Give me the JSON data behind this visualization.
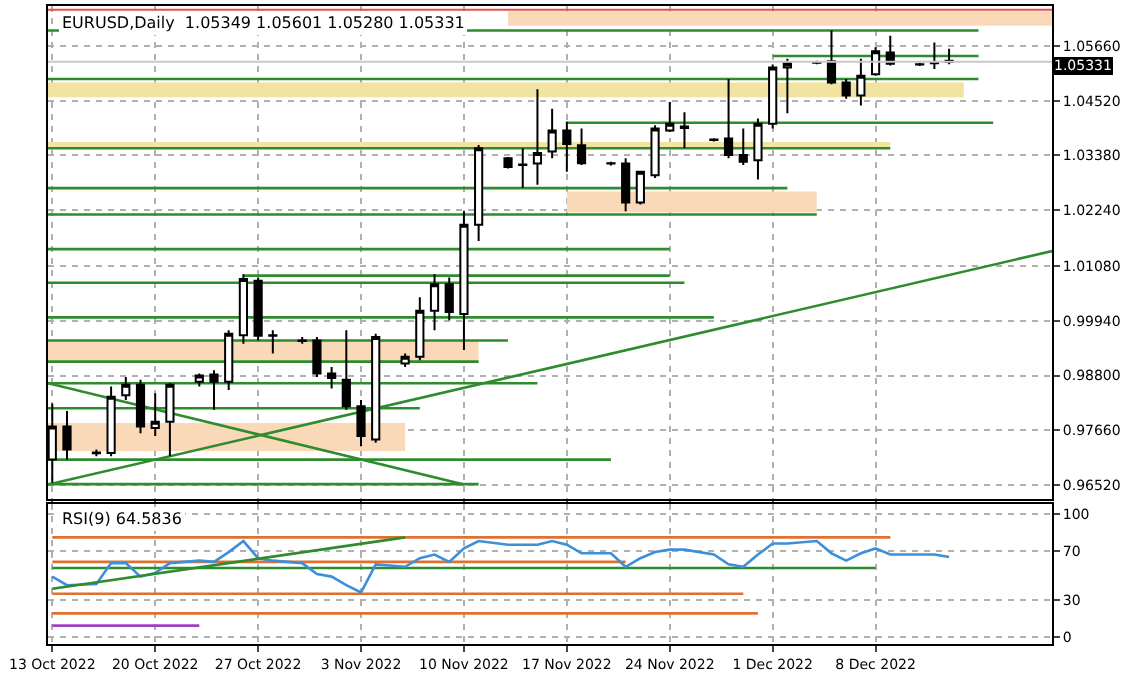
{
  "chart_data": [
    {
      "type": "candlestick",
      "title": "EURUSD,Daily  1.05349 1.05601 1.05280 1.05331",
      "x": [
        "2022-10-13",
        "2022-10-14",
        "2022-10-16",
        "2022-10-17",
        "2022-10-18",
        "2022-10-19",
        "2022-10-20",
        "2022-10-21",
        "2022-10-23",
        "2022-10-24",
        "2022-10-25",
        "2022-10-26",
        "2022-10-27",
        "2022-10-28",
        "2022-10-30",
        "2022-10-31",
        "2022-11-01",
        "2022-11-02",
        "2022-11-03",
        "2022-11-04",
        "2022-11-06",
        "2022-11-07",
        "2022-11-08",
        "2022-11-09",
        "2022-11-10",
        "2022-11-11",
        "2022-11-13",
        "2022-11-14",
        "2022-11-15",
        "2022-11-16",
        "2022-11-17",
        "2022-11-18",
        "2022-11-20",
        "2022-11-21",
        "2022-11-22",
        "2022-11-23",
        "2022-11-24",
        "2022-11-25",
        "2022-11-27",
        "2022-11-28",
        "2022-11-29",
        "2022-11-30",
        "2022-12-01",
        "2022-12-02",
        "2022-12-04",
        "2022-12-05",
        "2022-12-06",
        "2022-12-07",
        "2022-12-08",
        "2022-12-09",
        "2022-12-11",
        "2022-12-12",
        "2022-12-13"
      ],
      "ohlc": [
        [
          0.9705,
          0.9822,
          0.9657,
          0.9774
        ],
        [
          0.9774,
          0.9806,
          0.9705,
          0.9726
        ],
        [
          0.972,
          0.9726,
          0.9712,
          0.9718
        ],
        [
          0.9719,
          0.9857,
          0.9712,
          0.9836
        ],
        [
          0.9839,
          0.9877,
          0.9829,
          0.9861
        ],
        [
          0.9861,
          0.9871,
          0.976,
          0.9774
        ],
        [
          0.9771,
          0.9843,
          0.9754,
          0.9784
        ],
        [
          0.9784,
          0.9864,
          0.9712,
          0.9861
        ],
        [
          0.9867,
          0.9884,
          0.9857,
          0.988
        ],
        [
          0.9882,
          0.9891,
          0.9809,
          0.9867
        ],
        [
          0.9867,
          0.9974,
          0.985,
          0.9967
        ],
        [
          0.9964,
          1.0091,
          0.9946,
          1.0081
        ],
        [
          1.0077,
          1.0084,
          0.9953,
          0.9963
        ],
        [
          0.9964,
          0.9974,
          0.9926,
          0.9963
        ],
        [
          0.9953,
          0.996,
          0.9946,
          0.9952
        ],
        [
          0.9953,
          0.996,
          0.9877,
          0.9884
        ],
        [
          0.9884,
          0.9898,
          0.9853,
          0.9875
        ],
        [
          0.9871,
          0.9974,
          0.9809,
          0.9816
        ],
        [
          0.9816,
          0.9829,
          0.9733,
          0.9754
        ],
        [
          0.9747,
          0.9967,
          0.974,
          0.996
        ],
        [
          0.9905,
          0.9926,
          0.9898,
          0.9919
        ],
        [
          0.9919,
          1.0043,
          0.9912,
          1.0015
        ],
        [
          1.0015,
          1.0091,
          0.9974,
          1.007
        ],
        [
          1.007,
          1.0084,
          0.9995,
          1.0012
        ],
        [
          1.0008,
          1.0222,
          0.9933,
          1.0194
        ],
        [
          1.0194,
          1.036,
          1.016,
          1.0353
        ],
        [
          1.0332,
          1.0335,
          1.0311,
          1.0314
        ],
        [
          1.0319,
          1.0353,
          1.027,
          1.0318
        ],
        [
          1.0321,
          1.0476,
          1.0277,
          1.0343
        ],
        [
          1.0346,
          1.0435,
          1.0332,
          1.039
        ],
        [
          1.039,
          1.0408,
          1.0304,
          1.0362
        ],
        [
          1.0359,
          1.0394,
          1.0318,
          1.0322
        ],
        [
          1.0322,
          1.0325,
          1.0317,
          1.0321
        ],
        [
          1.0321,
          1.0332,
          1.0222,
          1.024
        ],
        [
          1.024,
          1.0305,
          1.0236,
          1.0304
        ],
        [
          1.0297,
          1.0401,
          1.0291,
          1.0394
        ],
        [
          1.039,
          1.0449,
          1.0387,
          1.0404
        ],
        [
          1.0395,
          1.0428,
          1.0353,
          1.0398
        ],
        [
          1.0371,
          1.0374,
          1.0367,
          1.037
        ],
        [
          1.0373,
          1.0497,
          1.0332,
          1.0339
        ],
        [
          1.0339,
          1.0394,
          1.0318,
          1.0325
        ],
        [
          1.0328,
          1.0415,
          1.0288,
          1.0404
        ],
        [
          1.0404,
          1.0527,
          1.0394,
          1.0521
        ],
        [
          1.0521,
          1.0539,
          1.0426,
          1.053
        ],
        [
          1.0532,
          1.0535,
          1.0528,
          1.0531
        ],
        [
          1.0534,
          1.0598,
          1.0486,
          1.049
        ],
        [
          1.049,
          1.0497,
          1.0456,
          1.0463
        ],
        [
          1.0463,
          1.0539,
          1.0442,
          1.0504
        ],
        [
          1.0507,
          1.0563,
          1.0504,
          1.0555
        ],
        [
          1.0552,
          1.0587,
          1.0525,
          1.0529
        ],
        [
          1.0528,
          1.0531,
          1.0524,
          1.0527
        ],
        [
          1.0531,
          1.0573,
          1.0518,
          1.053
        ],
        [
          1.05349,
          1.05601,
          1.0528,
          1.05331
        ]
      ],
      "xlim": [
        "2022-10-12T17:00",
        "2022-12-20"
      ],
      "xticks": [
        {
          "value": "2022-10-13",
          "label": null
        },
        {
          "value": "2022-10-20",
          "label": null
        },
        {
          "value": "2022-10-27",
          "label": null
        },
        {
          "value": "2022-11-03",
          "label": null
        },
        {
          "value": "2022-11-10",
          "label": null
        },
        {
          "value": "2022-11-17",
          "label": null
        },
        {
          "value": "2022-11-24",
          "label": null
        },
        {
          "value": "2022-12-01",
          "label": null
        },
        {
          "value": "2022-12-08",
          "label": null
        }
      ],
      "tick_labels": "y",
      "ylim": [
        0.9624,
        1.0649
      ],
      "yticks": [
        {
          "value": 0.9652,
          "label": "0.96520"
        },
        {
          "value": 0.9766,
          "label": "0.97660"
        },
        {
          "value": 0.988,
          "label": "0.98800"
        },
        {
          "value": 0.9994,
          "label": "0.99940"
        },
        {
          "value": 1.0108,
          "label": "1.01080"
        },
        {
          "value": 1.0224,
          "label": "1.02240"
        },
        {
          "value": 1.0338,
          "label": "1.03380"
        },
        {
          "value": 1.0452,
          "label": "1.04520"
        },
        {
          "value": 1.0566,
          "label": "1.05660"
        }
      ],
      "grid": true,
      "series": [
        {
          "type": "line",
          "color": "#f0e4a0",
          "x": [
            "2022-10-12T17:00",
            "2022-12-14"
          ],
          "values": [
            null,
            null
          ],
          "lower": [
            1.0459,
            1.0459
          ],
          "upper": [
            1.049,
            1.049
          ]
        },
        {
          "type": "line",
          "color": "#f0e4a0",
          "x": [
            "2022-10-12T17:00",
            "2022-12-09"
          ],
          "values": [
            null,
            null
          ],
          "lower": [
            1.0353,
            1.0353
          ],
          "upper": [
            1.0366,
            1.0366
          ]
        },
        {
          "type": "line",
          "color": "#fad9b8",
          "x": [
            "2022-11-13",
            "2022-12-20"
          ],
          "values": [
            null,
            null
          ],
          "lower": [
            1.0608,
            1.0608
          ],
          "upper": [
            1.0638,
            1.0638
          ]
        },
        {
          "type": "line",
          "color": "#fad9b8",
          "x": [
            "2022-11-17",
            "2022-12-04"
          ],
          "values": [
            null,
            null
          ],
          "lower": [
            1.0219,
            1.0219
          ],
          "upper": [
            1.0263,
            1.0263
          ]
        },
        {
          "type": "line",
          "color": "#fad9b8",
          "x": [
            "2022-10-12T17:00",
            "2022-11-11"
          ],
          "values": [
            null,
            null
          ],
          "lower": [
            0.9909,
            0.9909
          ],
          "upper": [
            0.9953,
            0.9953
          ]
        },
        {
          "type": "line",
          "color": "#fad9b8",
          "x": [
            "2022-10-12T17:00",
            "2022-11-06"
          ],
          "values": [
            null,
            null
          ],
          "lower": [
            0.9723,
            0.9723
          ],
          "upper": [
            0.9781,
            0.9781
          ]
        },
        {
          "type": "line",
          "color": "#2e8b2e",
          "x": [
            "2022-10-12T17:00",
            "2022-12-15"
          ],
          "values": [
            1.0598,
            1.0598
          ]
        },
        {
          "type": "line",
          "color": "#2e8b2e",
          "x": [
            "2022-10-12T17:00",
            "2022-12-15"
          ],
          "values": [
            1.0497,
            1.0497
          ]
        },
        {
          "type": "line",
          "color": "#2e8b2e",
          "x": [
            "2022-12-01",
            "2022-12-15"
          ],
          "values": [
            1.0545,
            1.0545
          ]
        },
        {
          "type": "line",
          "color": "#2e8b2e",
          "x": [
            "2022-11-17",
            "2022-12-16"
          ],
          "values": [
            1.0406,
            1.0406
          ]
        },
        {
          "type": "line",
          "color": "#2e8b2e",
          "x": [
            "2022-10-12T17:00",
            "2022-12-09"
          ],
          "values": [
            1.0353,
            1.0353
          ]
        },
        {
          "type": "line",
          "color": "#2e8b2e",
          "x": [
            "2022-10-12T17:00",
            "2022-12-02"
          ],
          "values": [
            1.027,
            1.027
          ]
        },
        {
          "type": "line",
          "color": "#2e8b2e",
          "x": [
            "2022-10-12T17:00",
            "2022-12-04"
          ],
          "values": [
            1.0215,
            1.0215
          ]
        },
        {
          "type": "line",
          "color": "#2e8b2e",
          "x": [
            "2022-10-12T17:00",
            "2022-11-24"
          ],
          "values": [
            1.0143,
            1.0143
          ]
        },
        {
          "type": "line",
          "color": "#2e8b2e",
          "x": [
            "2022-10-26",
            "2022-11-24"
          ],
          "values": [
            1.0088,
            1.0088
          ]
        },
        {
          "type": "line",
          "color": "#2e8b2e",
          "x": [
            "2022-10-12T17:00",
            "2022-11-25"
          ],
          "values": [
            1.0073,
            1.0073
          ]
        },
        {
          "type": "line",
          "color": "#2e8b2e",
          "x": [
            "2022-10-12T17:00",
            "2022-11-27"
          ],
          "values": [
            1.0001,
            1.0001
          ]
        },
        {
          "type": "line",
          "color": "#2e8b2e",
          "x": [
            "2022-10-12T17:00",
            "2022-11-13"
          ],
          "values": [
            0.9953,
            0.9953
          ]
        },
        {
          "type": "line",
          "color": "#2e8b2e",
          "x": [
            "2022-10-12T17:00",
            "2022-11-11"
          ],
          "values": [
            0.9909,
            0.9909
          ]
        },
        {
          "type": "line",
          "color": "#2e8b2e",
          "x": [
            "2022-10-12T17:00",
            "2022-11-15"
          ],
          "values": [
            0.9864,
            0.9864
          ]
        },
        {
          "type": "line",
          "color": "#2e8b2e",
          "x": [
            "2022-10-12T17:00",
            "2022-11-07"
          ],
          "values": [
            0.9812,
            0.9812
          ]
        },
        {
          "type": "line",
          "color": "#2e8b2e",
          "x": [
            "2022-10-12T17:00",
            "2022-11-20"
          ],
          "values": [
            0.9705,
            0.9705
          ]
        },
        {
          "type": "line",
          "color": "#2e8b2e",
          "x": [
            "2022-10-12T17:00",
            "2022-11-11"
          ],
          "values": [
            0.9654,
            0.9654
          ]
        },
        {
          "type": "line",
          "color": "#2e8b2e",
          "x": [
            "2022-10-12T17:00",
            "2022-11-10"
          ],
          "values": [
            0.9864,
            0.9653
          ]
        },
        {
          "type": "line",
          "color": "#2e8b2e",
          "x": [
            "2022-10-12T17:00",
            "2022-12-20"
          ],
          "values": [
            0.9653,
            1.0139
          ]
        }
      ],
      "ref_lines": [
        {
          "axis": "y",
          "value": 1.05331,
          "label": "1.05331",
          "color": "#c8c8c8"
        },
        {
          "axis": "y",
          "value": 1.0641,
          "color": "#e05050"
        }
      ]
    },
    {
      "type": "line",
      "title": "RSI(9) 64.5836",
      "x": [
        "2022-10-13",
        "2022-10-14",
        "2022-10-16",
        "2022-10-17",
        "2022-10-18",
        "2022-10-19",
        "2022-10-20",
        "2022-10-21",
        "2022-10-23",
        "2022-10-24",
        "2022-10-25",
        "2022-10-26",
        "2022-10-27",
        "2022-10-28",
        "2022-10-30",
        "2022-10-31",
        "2022-11-01",
        "2022-11-02",
        "2022-11-03",
        "2022-11-04",
        "2022-11-06",
        "2022-11-07",
        "2022-11-08",
        "2022-11-09",
        "2022-11-10",
        "2022-11-11",
        "2022-11-13",
        "2022-11-14",
        "2022-11-15",
        "2022-11-16",
        "2022-11-17",
        "2022-11-18",
        "2022-11-20",
        "2022-11-21",
        "2022-11-22",
        "2022-11-23",
        "2022-11-24",
        "2022-11-25",
        "2022-11-27",
        "2022-11-28",
        "2022-11-29",
        "2022-11-30",
        "2022-12-01",
        "2022-12-02",
        "2022-12-04",
        "2022-12-05",
        "2022-12-06",
        "2022-12-07",
        "2022-12-08",
        "2022-12-09",
        "2022-12-11",
        "2022-12-12",
        "2022-12-13"
      ],
      "xlim": [
        "2022-10-12T17:00",
        "2022-12-20"
      ],
      "xticks": [
        {
          "value": "2022-10-13",
          "label": "13 Oct 2022"
        },
        {
          "value": "2022-10-20",
          "label": "20 Oct 2022"
        },
        {
          "value": "2022-10-27",
          "label": "27 Oct 2022"
        },
        {
          "value": "2022-11-03",
          "label": "3 Nov 2022"
        },
        {
          "value": "2022-11-10",
          "label": "10 Nov 2022"
        },
        {
          "value": "2022-11-17",
          "label": "17 Nov 2022"
        },
        {
          "value": "2022-11-24",
          "label": "24 Nov 2022"
        },
        {
          "value": "2022-12-01",
          "label": "1 Dec 2022"
        },
        {
          "value": "2022-12-08",
          "label": "8 Dec 2022"
        }
      ],
      "ylim": [
        -6,
        108
      ],
      "yticks": [
        0,
        30,
        70,
        100
      ],
      "grid": true,
      "series": [
        {
          "type": "line",
          "color": "#e07030",
          "x": [
            "2022-10-13",
            "2022-12-09"
          ],
          "values": [
            81,
            81
          ]
        },
        {
          "type": "line",
          "color": "#e07030",
          "x": [
            "2022-10-13",
            "2022-11-21"
          ],
          "values": [
            61,
            61
          ]
        },
        {
          "type": "line",
          "color": "#2e8b2e",
          "x": [
            "2022-10-13",
            "2022-12-08"
          ],
          "values": [
            56,
            56
          ]
        },
        {
          "type": "line",
          "color": "#e07030",
          "x": [
            "2022-10-13",
            "2022-11-29"
          ],
          "values": [
            35,
            35
          ]
        },
        {
          "type": "line",
          "color": "#e07030",
          "x": [
            "2022-10-13",
            "2022-11-30"
          ],
          "values": [
            19,
            19
          ]
        },
        {
          "type": "line",
          "color": "#a040c0",
          "x": [
            "2022-10-13",
            "2022-10-23"
          ],
          "values": [
            9,
            9
          ]
        },
        {
          "type": "line",
          "color": "#3c8fd8",
          "values": [
            49,
            42,
            43,
            60,
            60,
            49,
            52,
            60,
            62,
            61,
            69,
            78,
            64,
            62,
            60,
            51,
            49,
            42,
            36,
            59,
            57,
            64,
            67,
            61,
            72,
            78,
            75,
            75,
            75,
            78,
            75,
            68,
            68,
            57,
            64,
            69,
            71,
            71,
            67,
            59,
            57,
            67,
            76,
            76,
            78,
            68,
            62,
            68,
            72,
            67,
            67,
            67,
            65
          ]
        },
        {
          "type": "line",
          "color": "#2e8b2e",
          "x": [
            "2022-10-13",
            "2022-11-06"
          ],
          "values": [
            39,
            81
          ]
        }
      ]
    }
  ]
}
